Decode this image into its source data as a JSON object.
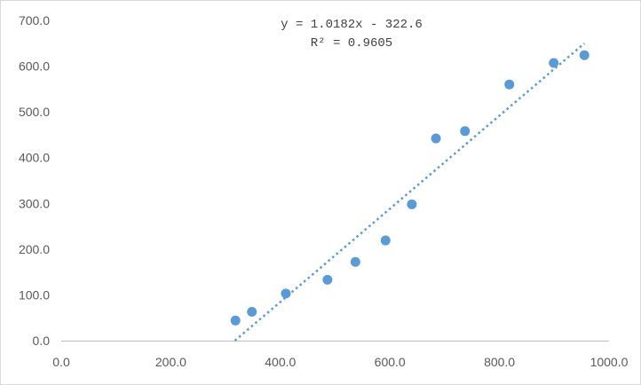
{
  "chart_data": {
    "type": "scatter",
    "title": "",
    "xlabel": "",
    "ylabel": "",
    "xlim": [
      0,
      1000
    ],
    "ylim": [
      0,
      700
    ],
    "x_ticks": [
      "0.0",
      "200.0",
      "400.0",
      "600.0",
      "800.0",
      "1000.0"
    ],
    "y_ticks": [
      "0.0",
      "100.0",
      "200.0",
      "300.0",
      "400.0",
      "500.0",
      "600.0",
      "700.0"
    ],
    "grid": false,
    "legend": "none",
    "series": [
      {
        "points": [
          {
            "x": 318,
            "y": 44
          },
          {
            "x": 348,
            "y": 63
          },
          {
            "x": 410,
            "y": 103
          },
          {
            "x": 486,
            "y": 133
          },
          {
            "x": 537,
            "y": 172
          },
          {
            "x": 592,
            "y": 219
          },
          {
            "x": 640,
            "y": 298
          },
          {
            "x": 684,
            "y": 442
          },
          {
            "x": 737,
            "y": 458
          },
          {
            "x": 818,
            "y": 560
          },
          {
            "x": 899,
            "y": 607
          },
          {
            "x": 955,
            "y": 624
          }
        ],
        "color": "#5b9bd5"
      }
    ],
    "trendline": {
      "type": "linear",
      "slope": 1.0182,
      "intercept": -322.6,
      "x_range": [
        317,
        955
      ],
      "style": "dotted",
      "color": "#5b9bd5",
      "equation_label": "y = 1.0182x - 322.6",
      "r2_label": "R² = 0.9605"
    }
  }
}
